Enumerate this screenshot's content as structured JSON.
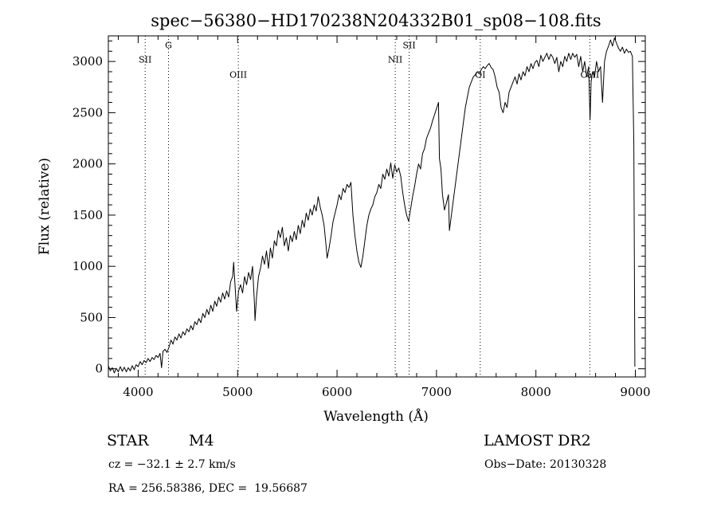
{
  "chart_data": {
    "type": "line",
    "title": "spec−56380−HD170238N204332B01_sp08−108.fits",
    "xlabel": "Wavelength (Å)",
    "ylabel": "Flux (relative)",
    "xlim": [
      3700,
      9100
    ],
    "ylim": [
      -80,
      3250
    ],
    "x_ticks": [
      4000,
      5000,
      6000,
      7000,
      8000,
      9000
    ],
    "y_ticks": [
      0,
      500,
      1000,
      1500,
      2000,
      2500,
      3000
    ],
    "grid": false,
    "line_color": "#000000",
    "series": [
      {
        "values": [
          [
            3700,
            30
          ],
          [
            3720,
            -20
          ],
          [
            3740,
            10
          ],
          [
            3760,
            -40
          ],
          [
            3780,
            5
          ],
          [
            3800,
            -30
          ],
          [
            3820,
            20
          ],
          [
            3840,
            -25
          ],
          [
            3860,
            15
          ],
          [
            3880,
            -30
          ],
          [
            3900,
            10
          ],
          [
            3920,
            -20
          ],
          [
            3940,
            30
          ],
          [
            3960,
            -10
          ],
          [
            3980,
            40
          ],
          [
            4000,
            20
          ],
          [
            4020,
            70
          ],
          [
            4040,
            40
          ],
          [
            4060,
            80
          ],
          [
            4080,
            60
          ],
          [
            4100,
            100
          ],
          [
            4120,
            70
          ],
          [
            4140,
            110
          ],
          [
            4160,
            90
          ],
          [
            4180,
            130
          ],
          [
            4200,
            110
          ],
          [
            4220,
            150
          ],
          [
            4235,
            10
          ],
          [
            4250,
            170
          ],
          [
            4270,
            190
          ],
          [
            4290,
            160
          ],
          [
            4310,
            210
          ],
          [
            4330,
            280
          ],
          [
            4350,
            240
          ],
          [
            4370,
            310
          ],
          [
            4390,
            280
          ],
          [
            4410,
            340
          ],
          [
            4430,
            300
          ],
          [
            4450,
            360
          ],
          [
            4470,
            330
          ],
          [
            4490,
            390
          ],
          [
            4510,
            360
          ],
          [
            4530,
            420
          ],
          [
            4550,
            380
          ],
          [
            4570,
            460
          ],
          [
            4590,
            430
          ],
          [
            4610,
            490
          ],
          [
            4630,
            450
          ],
          [
            4650,
            540
          ],
          [
            4670,
            500
          ],
          [
            4690,
            580
          ],
          [
            4710,
            530
          ],
          [
            4730,
            620
          ],
          [
            4750,
            560
          ],
          [
            4770,
            660
          ],
          [
            4790,
            610
          ],
          [
            4810,
            700
          ],
          [
            4830,
            650
          ],
          [
            4850,
            740
          ],
          [
            4870,
            680
          ],
          [
            4890,
            760
          ],
          [
            4910,
            700
          ],
          [
            4930,
            850
          ],
          [
            4950,
            900
          ],
          [
            4960,
            1040
          ],
          [
            4970,
            880
          ],
          [
            4990,
            560
          ],
          [
            5010,
            760
          ],
          [
            5030,
            820
          ],
          [
            5050,
            740
          ],
          [
            5070,
            900
          ],
          [
            5090,
            820
          ],
          [
            5110,
            940
          ],
          [
            5130,
            870
          ],
          [
            5150,
            1000
          ],
          [
            5170,
            620
          ],
          [
            5175,
            470
          ],
          [
            5190,
            700
          ],
          [
            5210,
            900
          ],
          [
            5230,
            980
          ],
          [
            5250,
            1100
          ],
          [
            5270,
            1020
          ],
          [
            5290,
            1150
          ],
          [
            5310,
            980
          ],
          [
            5330,
            1180
          ],
          [
            5350,
            1080
          ],
          [
            5370,
            1250
          ],
          [
            5390,
            1200
          ],
          [
            5410,
            1350
          ],
          [
            5430,
            1280
          ],
          [
            5450,
            1380
          ],
          [
            5470,
            1200
          ],
          [
            5490,
            1280
          ],
          [
            5510,
            1150
          ],
          [
            5530,
            1300
          ],
          [
            5550,
            1240
          ],
          [
            5570,
            1340
          ],
          [
            5590,
            1260
          ],
          [
            5610,
            1400
          ],
          [
            5630,
            1320
          ],
          [
            5650,
            1450
          ],
          [
            5670,
            1380
          ],
          [
            5690,
            1520
          ],
          [
            5710,
            1450
          ],
          [
            5730,
            1560
          ],
          [
            5750,
            1500
          ],
          [
            5770,
            1600
          ],
          [
            5790,
            1540
          ],
          [
            5810,
            1680
          ],
          [
            5830,
            1580
          ],
          [
            5850,
            1500
          ],
          [
            5870,
            1400
          ],
          [
            5890,
            1200
          ],
          [
            5900,
            1080
          ],
          [
            5920,
            1180
          ],
          [
            5940,
            1300
          ],
          [
            5960,
            1440
          ],
          [
            5980,
            1520
          ],
          [
            6000,
            1600
          ],
          [
            6020,
            1700
          ],
          [
            6040,
            1650
          ],
          [
            6060,
            1760
          ],
          [
            6080,
            1720
          ],
          [
            6100,
            1800
          ],
          [
            6120,
            1770
          ],
          [
            6140,
            1820
          ],
          [
            6160,
            1500
          ],
          [
            6180,
            1300
          ],
          [
            6200,
            1150
          ],
          [
            6220,
            1040
          ],
          [
            6240,
            990
          ],
          [
            6260,
            1100
          ],
          [
            6280,
            1250
          ],
          [
            6300,
            1400
          ],
          [
            6320,
            1500
          ],
          [
            6340,
            1560
          ],
          [
            6360,
            1600
          ],
          [
            6380,
            1680
          ],
          [
            6400,
            1720
          ],
          [
            6420,
            1800
          ],
          [
            6440,
            1760
          ],
          [
            6460,
            1900
          ],
          [
            6480,
            1850
          ],
          [
            6500,
            1950
          ],
          [
            6520,
            1880
          ],
          [
            6540,
            2010
          ],
          [
            6560,
            1860
          ],
          [
            6580,
            1990
          ],
          [
            6600,
            1920
          ],
          [
            6620,
            1960
          ],
          [
            6640,
            1880
          ],
          [
            6660,
            1720
          ],
          [
            6680,
            1600
          ],
          [
            6700,
            1500
          ],
          [
            6720,
            1440
          ],
          [
            6740,
            1560
          ],
          [
            6760,
            1680
          ],
          [
            6780,
            1780
          ],
          [
            6800,
            1900
          ],
          [
            6820,
            2000
          ],
          [
            6840,
            1950
          ],
          [
            6860,
            2100
          ],
          [
            6880,
            2150
          ],
          [
            6900,
            2250
          ],
          [
            6920,
            2300
          ],
          [
            6940,
            2350
          ],
          [
            6960,
            2420
          ],
          [
            6980,
            2480
          ],
          [
            7000,
            2540
          ],
          [
            7020,
            2600
          ],
          [
            7030,
            2050
          ],
          [
            7045,
            1950
          ],
          [
            7060,
            1700
          ],
          [
            7080,
            1550
          ],
          [
            7100,
            1620
          ],
          [
            7120,
            1700
          ],
          [
            7130,
            1350
          ],
          [
            7150,
            1500
          ],
          [
            7170,
            1650
          ],
          [
            7190,
            1800
          ],
          [
            7210,
            1950
          ],
          [
            7230,
            2100
          ],
          [
            7250,
            2250
          ],
          [
            7270,
            2400
          ],
          [
            7290,
            2550
          ],
          [
            7310,
            2650
          ],
          [
            7330,
            2750
          ],
          [
            7350,
            2800
          ],
          [
            7370,
            2850
          ],
          [
            7390,
            2870
          ],
          [
            7410,
            2900
          ],
          [
            7430,
            2880
          ],
          [
            7450,
            2920
          ],
          [
            7470,
            2950
          ],
          [
            7490,
            2930
          ],
          [
            7510,
            2960
          ],
          [
            7530,
            2980
          ],
          [
            7550,
            2940
          ],
          [
            7570,
            2920
          ],
          [
            7590,
            2850
          ],
          [
            7610,
            2750
          ],
          [
            7630,
            2700
          ],
          [
            7650,
            2550
          ],
          [
            7670,
            2500
          ],
          [
            7690,
            2600
          ],
          [
            7710,
            2550
          ],
          [
            7730,
            2700
          ],
          [
            7750,
            2750
          ],
          [
            7770,
            2800
          ],
          [
            7790,
            2850
          ],
          [
            7810,
            2780
          ],
          [
            7830,
            2880
          ],
          [
            7850,
            2820
          ],
          [
            7870,
            2900
          ],
          [
            7890,
            2860
          ],
          [
            7910,
            2950
          ],
          [
            7930,
            2900
          ],
          [
            7950,
            2980
          ],
          [
            7970,
            2930
          ],
          [
            7990,
            2990
          ],
          [
            8010,
            3010
          ],
          [
            8030,
            2950
          ],
          [
            8050,
            3060
          ],
          [
            8070,
            3000
          ],
          [
            8090,
            3040
          ],
          [
            8110,
            3080
          ],
          [
            8130,
            3020
          ],
          [
            8150,
            3070
          ],
          [
            8170,
            3040
          ],
          [
            8190,
            2980
          ],
          [
            8210,
            3040
          ],
          [
            8230,
            2900
          ],
          [
            8250,
            3000
          ],
          [
            8270,
            2950
          ],
          [
            8290,
            3050
          ],
          [
            8310,
            3000
          ],
          [
            8330,
            3080
          ],
          [
            8350,
            3020
          ],
          [
            8370,
            3080
          ],
          [
            8390,
            3040
          ],
          [
            8410,
            3070
          ],
          [
            8430,
            2950
          ],
          [
            8450,
            3050
          ],
          [
            8470,
            2900
          ],
          [
            8490,
            3000
          ],
          [
            8510,
            2850
          ],
          [
            8530,
            2950
          ],
          [
            8545,
            2430
          ],
          [
            8555,
            2800
          ],
          [
            8570,
            2900
          ],
          [
            8590,
            2850
          ],
          [
            8610,
            3000
          ],
          [
            8630,
            2900
          ],
          [
            8650,
            2950
          ],
          [
            8670,
            2600
          ],
          [
            8690,
            3000
          ],
          [
            8710,
            3100
          ],
          [
            8730,
            3150
          ],
          [
            8750,
            3210
          ],
          [
            8770,
            3150
          ],
          [
            8790,
            3230
          ],
          [
            8810,
            3180
          ],
          [
            8830,
            3130
          ],
          [
            8850,
            3100
          ],
          [
            8870,
            3140
          ],
          [
            8890,
            3080
          ],
          [
            8910,
            3120
          ],
          [
            8930,
            3090
          ],
          [
            8950,
            3100
          ],
          [
            8970,
            3050
          ],
          [
            8985,
            2200
          ],
          [
            8995,
            20
          ]
        ]
      }
    ],
    "lines": [
      {
        "label": "SII",
        "x": 4070,
        "label_y": 2990
      },
      {
        "label": "G",
        "x": 4305,
        "label_y": 3130
      },
      {
        "label": "OIII",
        "x": 5007,
        "label_y": 2840
      },
      {
        "label": "NII",
        "x": 6585,
        "label_y": 2990
      },
      {
        "label": "SII",
        "x": 6725,
        "label_y": 3130
      },
      {
        "label": "OI",
        "x": 7440,
        "label_y": 2840
      },
      {
        "label": "CaII",
        "x": 8542,
        "label_y": 2840
      }
    ]
  },
  "info": {
    "class_label": "STAR",
    "subclass": "M4",
    "survey": "LAMOST DR2",
    "cz": "cz = −32.1 ± 2.7 km/s",
    "obs_date": "Obs−Date: 20130328",
    "radec": "RA = 256.58386, DEC =  19.56687"
  }
}
